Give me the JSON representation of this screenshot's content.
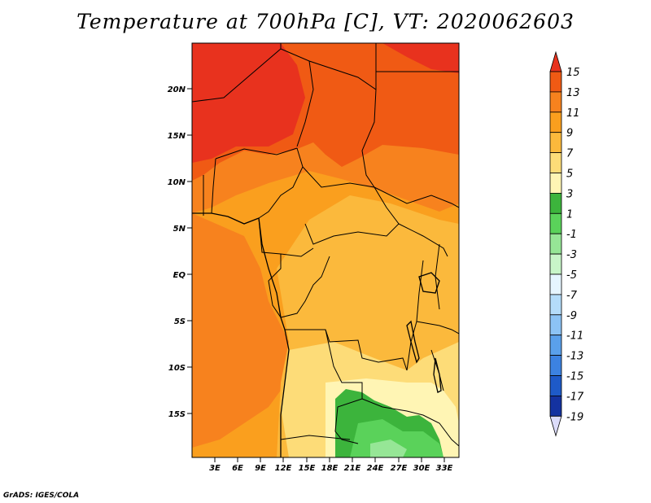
{
  "title": "Temperature at 700hPa [C], VT: 2020062603",
  "credit": "GrADS: IGES/COLA",
  "map": {
    "variable": "Temperature at 700hPa",
    "units": "C",
    "valid_time": "2020062603",
    "lon_range": [
      1,
      35
    ],
    "lat_range": [
      -19,
      25
    ],
    "lat_ticks": [
      {
        "value": 20,
        "label": "20N"
      },
      {
        "value": 15,
        "label": "15N"
      },
      {
        "value": 10,
        "label": "10N"
      },
      {
        "value": 5,
        "label": "5N"
      },
      {
        "value": 0,
        "label": "EQ"
      },
      {
        "value": -5,
        "label": "5S"
      },
      {
        "value": -10,
        "label": "10S"
      },
      {
        "value": -15,
        "label": "15S"
      }
    ],
    "lon_ticks": [
      {
        "value": 3,
        "label": "3E"
      },
      {
        "value": 6,
        "label": "6E"
      },
      {
        "value": 9,
        "label": "9E"
      },
      {
        "value": 12,
        "label": "12E"
      },
      {
        "value": 15,
        "label": "15E"
      },
      {
        "value": 18,
        "label": "18E"
      },
      {
        "value": 21,
        "label": "21E"
      },
      {
        "value": 24,
        "label": "24E"
      },
      {
        "value": 27,
        "label": "27E"
      },
      {
        "value": 30,
        "label": "30E"
      },
      {
        "value": 33,
        "label": "33E"
      }
    ]
  },
  "colorbar": {
    "labels": [
      "15",
      "13",
      "11",
      "9",
      "7",
      "5",
      "3",
      "1",
      "-1",
      "-3",
      "-5",
      "-7",
      "-9",
      "-11",
      "-13",
      "-15",
      "-17",
      "-19"
    ],
    "colors": [
      "#e8321e",
      "#f05a14",
      "#f7821e",
      "#fa9f1e",
      "#fbb93c",
      "#fddc78",
      "#fff5b4",
      "#3cb43c",
      "#5ad25a",
      "#96e696",
      "#c8f5c8",
      "#e6f5ff",
      "#b4dcfa",
      "#8cc3f5",
      "#5aa0eb",
      "#3c82e1",
      "#1e5ac8",
      "#1432a0",
      "#0a1460"
    ],
    "triangle_low_color": "#dcdcfa"
  },
  "fields": {
    "colors": {
      "c13": "#e8321e",
      "c11": "#f05a14",
      "c9": "#f7821e",
      "c7": "#fa9f1e",
      "c5": "#fbb93c",
      "c3": "#fddc78",
      "c1": "#fff5b4",
      "g1": "#3cb43c",
      "g2": "#5ad25a",
      "g3": "#96e696"
    }
  }
}
